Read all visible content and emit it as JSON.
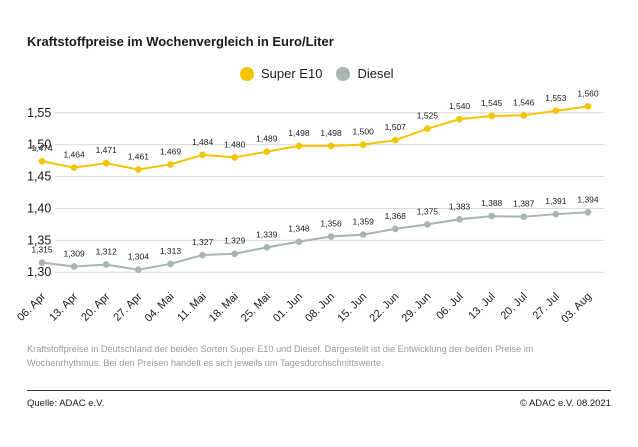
{
  "chart_data": {
    "type": "line",
    "title": "Kraftstoffpreise im Wochenvergleich in Euro/Liter",
    "categories": [
      "06. Apr",
      "13. Apr",
      "20. Apr",
      "27. Apr",
      "04. Mai",
      "11. Mai",
      "18. Mai",
      "25. Mai",
      "01. Jun",
      "08. Jun",
      "15. Jun",
      "22. Jun",
      "29. Jun",
      "06. Jul",
      "13. Jul",
      "20. Jul",
      "27. Jul",
      "03. Aug"
    ],
    "series": [
      {
        "name": "Super E10",
        "color": "#f5c400",
        "values": [
          1.474,
          1.464,
          1.471,
          1.461,
          1.469,
          1.484,
          1.48,
          1.489,
          1.498,
          1.498,
          1.5,
          1.507,
          1.525,
          1.54,
          1.545,
          1.546,
          1.553,
          1.56
        ],
        "labels": [
          "1,474",
          "1,464",
          "1,471",
          "1,461",
          "1,469",
          "1,484",
          "1,480",
          "1,489",
          "1,498",
          "1,498",
          "1,500",
          "1,507",
          "1,525",
          "1,540",
          "1,545",
          "1,546",
          "1,553",
          "1,560"
        ]
      },
      {
        "name": "Diesel",
        "color": "#a8b4b0",
        "values": [
          1.315,
          1.309,
          1.312,
          1.304,
          1.313,
          1.327,
          1.329,
          1.339,
          1.348,
          1.356,
          1.359,
          1.368,
          1.375,
          1.383,
          1.388,
          1.387,
          1.391,
          1.394
        ],
        "labels": [
          "1,315",
          "1,309",
          "1,312",
          "1,304",
          "1,313",
          "1,327",
          "1,329",
          "1,339",
          "1,348",
          "1,356",
          "1,359",
          "1,368",
          "1,375",
          "1,383",
          "1,388",
          "1,387",
          "1,391",
          "1,394"
        ]
      }
    ],
    "yticks": [
      1.3,
      1.35,
      1.4,
      1.45,
      1.5,
      1.55
    ],
    "ytick_labels": [
      "1,30",
      "1,35",
      "1,40",
      "1,45",
      "1,50",
      "1,55"
    ],
    "ylim": [
      1.28,
      1.57
    ],
    "grid": true,
    "legend": "top-center"
  },
  "caption": "Kraftstoffpreise in Deutschland der beiden Sorten Super E10 und Diesel. Dargestellt ist die Entwicklung der beiden Preise im Wochenrhythmus. Bei den Preisen handelt es sich jeweils um Tagesdurchschnittswerte.",
  "footer": {
    "source": "Quelle: ADAC e.V.",
    "copyright": "© ADAC e.V. 08.2021"
  }
}
